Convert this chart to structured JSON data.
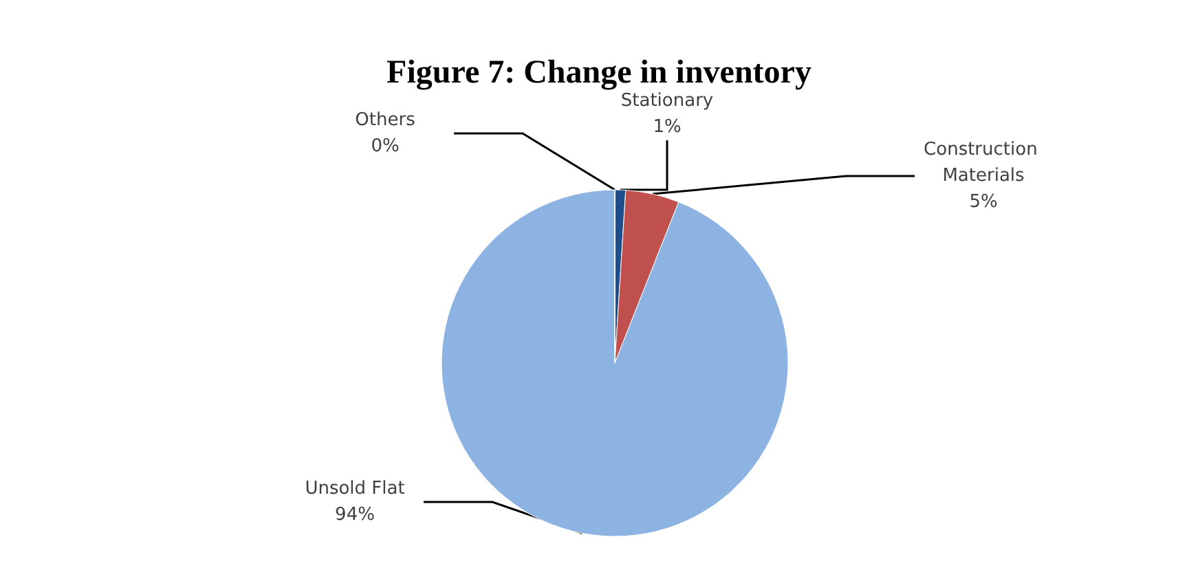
{
  "chart_data": {
    "type": "pie",
    "title": "Figure 7: Change in inventory",
    "categories": [
      "Stationary",
      "Construction Materials",
      "Unsold Flat",
      "Others"
    ],
    "values": [
      1,
      5,
      94,
      0
    ],
    "colors": [
      "#1f4e8c",
      "#c0504d",
      "#8db3e2",
      "#8064a2"
    ],
    "value_labels": [
      "1%",
      "5%",
      "94%",
      "0%"
    ],
    "legend": false
  }
}
